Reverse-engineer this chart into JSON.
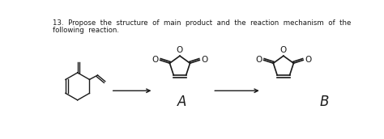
{
  "title_line1": "13.  Propose  the  structure  of  main  product  and  the  reaction  mechanism  of  the",
  "title_line2": "following  reaction.",
  "label_A": "A",
  "label_B": "B",
  "bg_color": "#ffffff",
  "text_color": "#1a1a1a",
  "figsize": [
    4.74,
    1.72
  ],
  "dpi": 100
}
